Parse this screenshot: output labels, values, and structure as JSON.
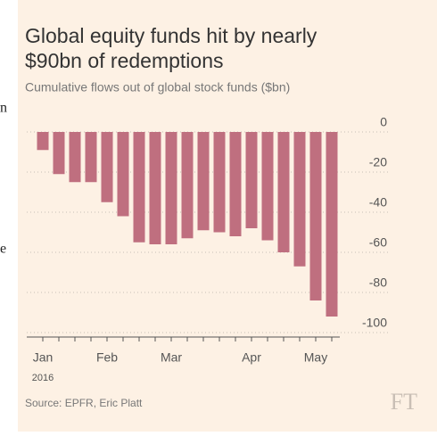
{
  "chart_data": {
    "type": "bar",
    "title_lines": [
      "Global equity funds hit by nearly",
      "$90bn of redemptions"
    ],
    "subtitle": "Cumulative flows out of global stock funds ($bn)",
    "categories": [
      "Jan",
      null,
      null,
      null,
      "Feb",
      null,
      null,
      null,
      "Mar",
      null,
      null,
      null,
      null,
      "Apr",
      null,
      null,
      null,
      "May",
      null
    ],
    "x_sublabel": "2016",
    "values": [
      -9,
      -21,
      -25,
      -25,
      -35,
      -42,
      -55,
      -56,
      -56,
      -53,
      -49,
      -50,
      -52,
      -48,
      -54,
      -60,
      -67,
      -84,
      -92
    ],
    "color": "#bf6f7f",
    "ylim": [
      -100,
      0
    ],
    "yticks": [
      0,
      -20,
      -40,
      -60,
      -80,
      -100
    ],
    "grid": true,
    "source": "Source: EPFR, Eric Platt",
    "logo": "FT"
  },
  "side_fragments": [
    "n",
    "e"
  ]
}
